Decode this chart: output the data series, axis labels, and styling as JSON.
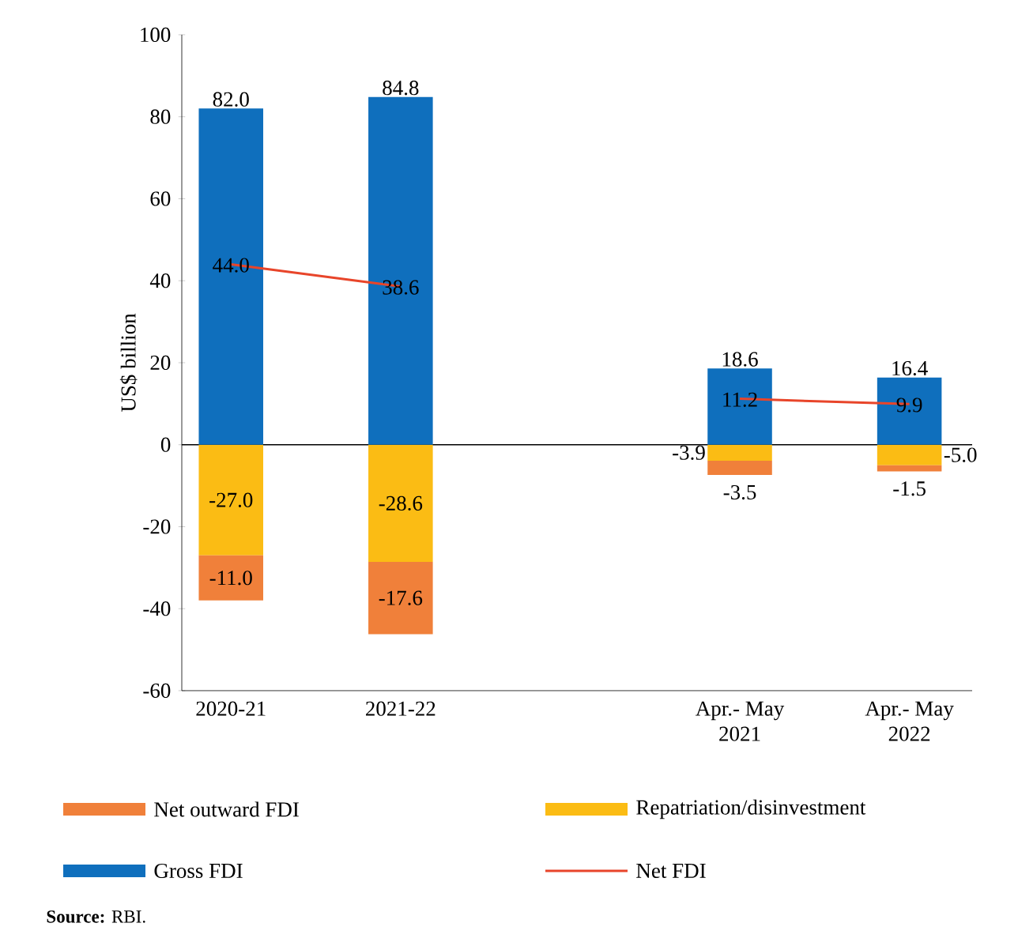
{
  "chart_data": {
    "type": "bar",
    "stacked": true,
    "ylabel": "US$ billion",
    "categories": [
      "2020-21",
      "2021-22",
      null,
      "Apr.- May\n2021",
      "Apr.- May\n2022"
    ],
    "series": [
      {
        "name": "Repatriation/disinvestment",
        "color": "#fbbc14",
        "values": [
          -27.0,
          -28.6,
          null,
          -3.9,
          -5.0
        ],
        "value_labels": [
          "-27.0",
          "-28.6",
          null,
          "-3.9",
          "-5.0"
        ]
      },
      {
        "name": "Net outward FDI",
        "color": "#f0803a",
        "values": [
          -11.0,
          -17.6,
          null,
          -3.5,
          -1.5
        ],
        "value_labels": [
          "-11.0",
          "-17.6",
          null,
          "-3.5",
          "-1.5"
        ]
      },
      {
        "name": "Gross FDI",
        "color": "#0f6fbd",
        "values": [
          82.0,
          84.8,
          null,
          18.6,
          16.4
        ],
        "value_labels": [
          "82.0",
          "84.8",
          null,
          "18.6",
          "16.4"
        ]
      },
      {
        "name": "Net FDI",
        "type": "line",
        "color": "#e8452a",
        "values": [
          44.0,
          38.6,
          null,
          11.2,
          9.9
        ],
        "value_labels": [
          "44.0",
          "38.6",
          null,
          "11.2",
          "9.9"
        ]
      }
    ],
    "ylim": [
      -60,
      100
    ],
    "yticks": [
      -60,
      -40,
      -20,
      0,
      20,
      40,
      60,
      80,
      100
    ],
    "ref_lines": [
      {
        "axis": "y",
        "value": 0,
        "color": "#000000"
      }
    ],
    "grid": false,
    "legend": "bottom",
    "annotations": [
      "**Source:** RBI."
    ]
  }
}
